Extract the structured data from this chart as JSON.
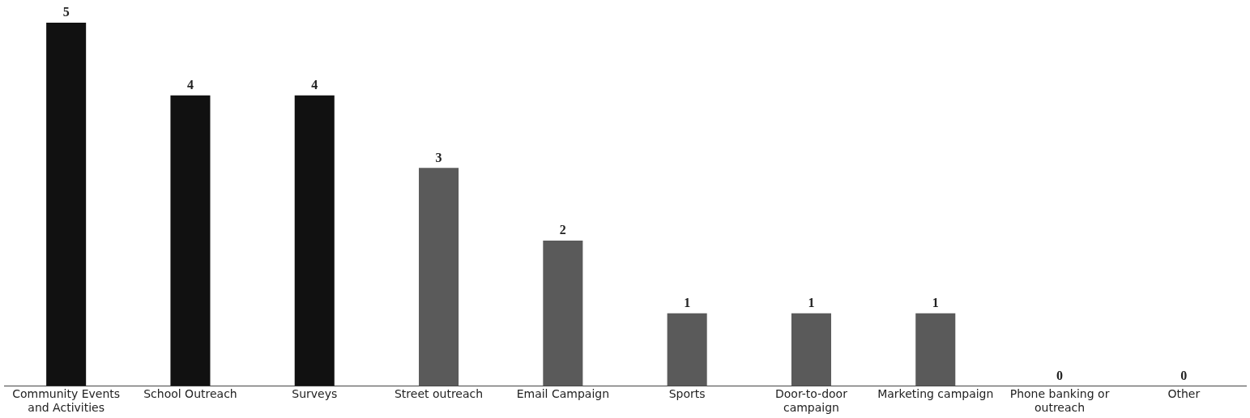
{
  "chart_data": {
    "type": "bar",
    "categories": [
      "Community Events and Activities",
      "School Outreach",
      "Surveys",
      "Street outreach",
      "Email Campaign",
      "Sports",
      "Door-to-door campaign",
      "Marketing campaign",
      "Phone banking or outreach",
      "Other"
    ],
    "values": [
      5,
      4,
      4,
      3,
      2,
      1,
      1,
      1,
      0,
      0
    ],
    "colors": [
      "#111111",
      "#111111",
      "#111111",
      "#5a5a5a",
      "#5a5a5a",
      "#5a5a5a",
      "#5a5a5a",
      "#5a5a5a",
      "#5a5a5a",
      "#5a5a5a"
    ],
    "data_labels": true,
    "grid": false,
    "legend": false
  }
}
